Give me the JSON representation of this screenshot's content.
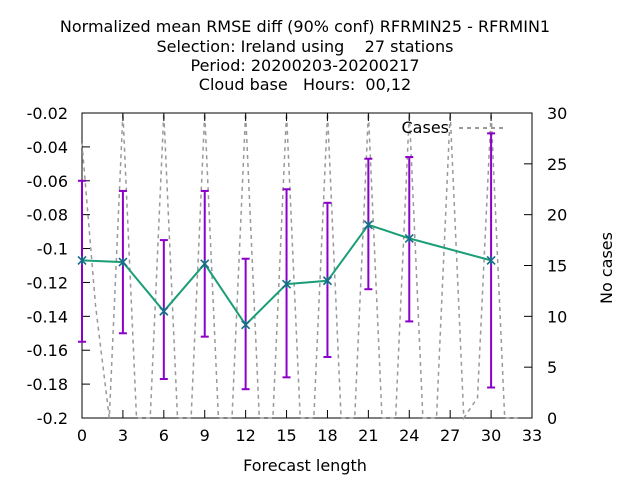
{
  "chart_data": {
    "type": "line",
    "title_lines": [
      "Normalized mean RMSE diff (90% conf) RFRMIN25 - RFRMIN1",
      "Selection: Ireland using    27 stations",
      "Period: 20200203-20200217",
      "Cloud base   Hours:  00,12"
    ],
    "xlabel": "Forecast length",
    "y2label": "No cases",
    "xlim": [
      0,
      33
    ],
    "ylim": [
      -0.2,
      -0.02
    ],
    "y2lim": [
      0,
      30
    ],
    "xticks": [
      "0",
      "3",
      "6",
      "9",
      "12",
      "15",
      "18",
      "21",
      "24",
      "27",
      "30",
      "33"
    ],
    "yticks": [
      "-0.02",
      "-0.04",
      "-0.06",
      "-0.08",
      "-0.1",
      "-0.12",
      "-0.14",
      "-0.16",
      "-0.18",
      "-0.2"
    ],
    "y2ticks": [
      "30",
      "25",
      "20",
      "15",
      "10",
      "5",
      "0"
    ],
    "grid": false,
    "legend_position": "top-right",
    "colors": {
      "mean": "#1a9e77",
      "marker": "#1a6b8a",
      "errorbar": "#8b00c8",
      "cases": "#999999"
    },
    "series": [
      {
        "x": [
          0,
          3,
          6,
          9,
          12,
          15,
          18,
          21,
          24,
          30
        ],
        "values": [
          -0.107,
          -0.108,
          -0.137,
          -0.109,
          -0.145,
          -0.121,
          -0.119,
          -0.086,
          -0.094,
          -0.107
        ],
        "upper": [
          -0.06,
          -0.066,
          -0.095,
          -0.066,
          -0.106,
          -0.065,
          -0.073,
          -0.047,
          -0.046,
          -0.032
        ],
        "lower": [
          -0.155,
          -0.15,
          -0.177,
          -0.152,
          -0.183,
          -0.176,
          -0.164,
          -0.124,
          -0.143,
          -0.182
        ]
      },
      {
        "name": "Cases",
        "axis": "y2",
        "x": [
          0,
          1,
          2,
          3,
          4,
          5,
          6,
          7,
          8,
          9,
          10,
          11,
          12,
          13,
          14,
          15,
          16,
          17,
          18,
          19,
          20,
          21,
          22,
          23,
          24,
          25,
          26,
          27,
          28,
          29,
          30,
          31,
          32
        ],
        "values": [
          27,
          11,
          0,
          30,
          0,
          0,
          30,
          0,
          0,
          30,
          0,
          0,
          30,
          0,
          0,
          30,
          0,
          0,
          30,
          0,
          0,
          30,
          0,
          0,
          30,
          0,
          0,
          30,
          0,
          2,
          30,
          0,
          0
        ]
      }
    ]
  }
}
